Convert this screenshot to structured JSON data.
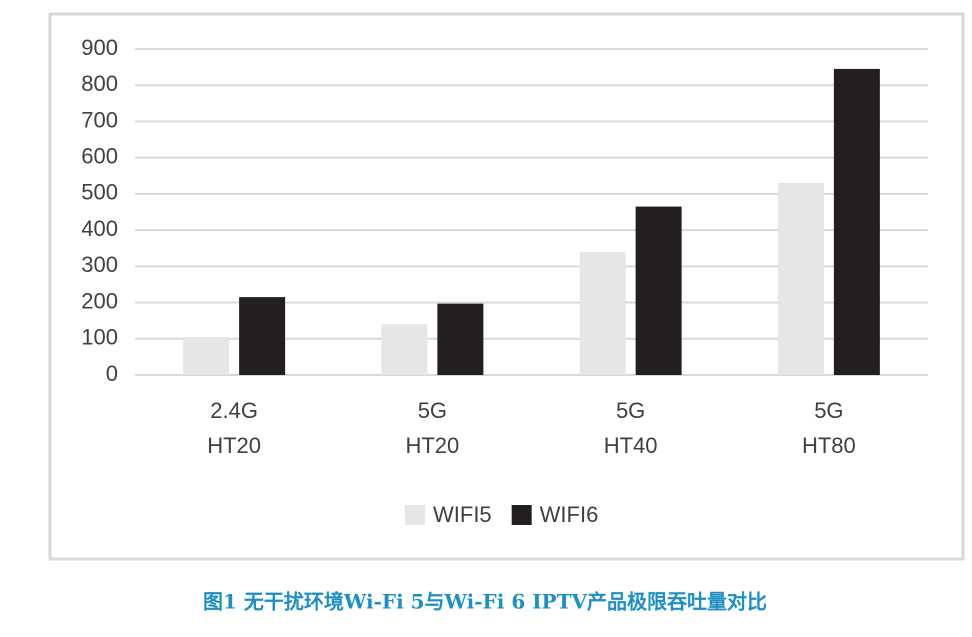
{
  "chart_data": {
    "type": "bar",
    "caption": "图1 无干扰环境Wi-Fi 5与Wi-Fi 6 IPTV产品极限吞吐量对比",
    "categories": [
      [
        "2.4G",
        "HT20"
      ],
      [
        "5G",
        "HT20"
      ],
      [
        "5G",
        "HT40"
      ],
      [
        "5G",
        "HT80"
      ]
    ],
    "series": [
      {
        "name": "WIFI5",
        "color": "#e6e6e6",
        "values": [
          105,
          140,
          340,
          530
        ]
      },
      {
        "name": "WIFI6",
        "color": "#231f20",
        "values": [
          215,
          197,
          465,
          845
        ]
      }
    ],
    "ylim": [
      0,
      900
    ],
    "yticks": [
      0,
      100,
      200,
      300,
      400,
      500,
      600,
      700,
      800,
      900
    ],
    "grid": true,
    "legend": "bottom"
  }
}
